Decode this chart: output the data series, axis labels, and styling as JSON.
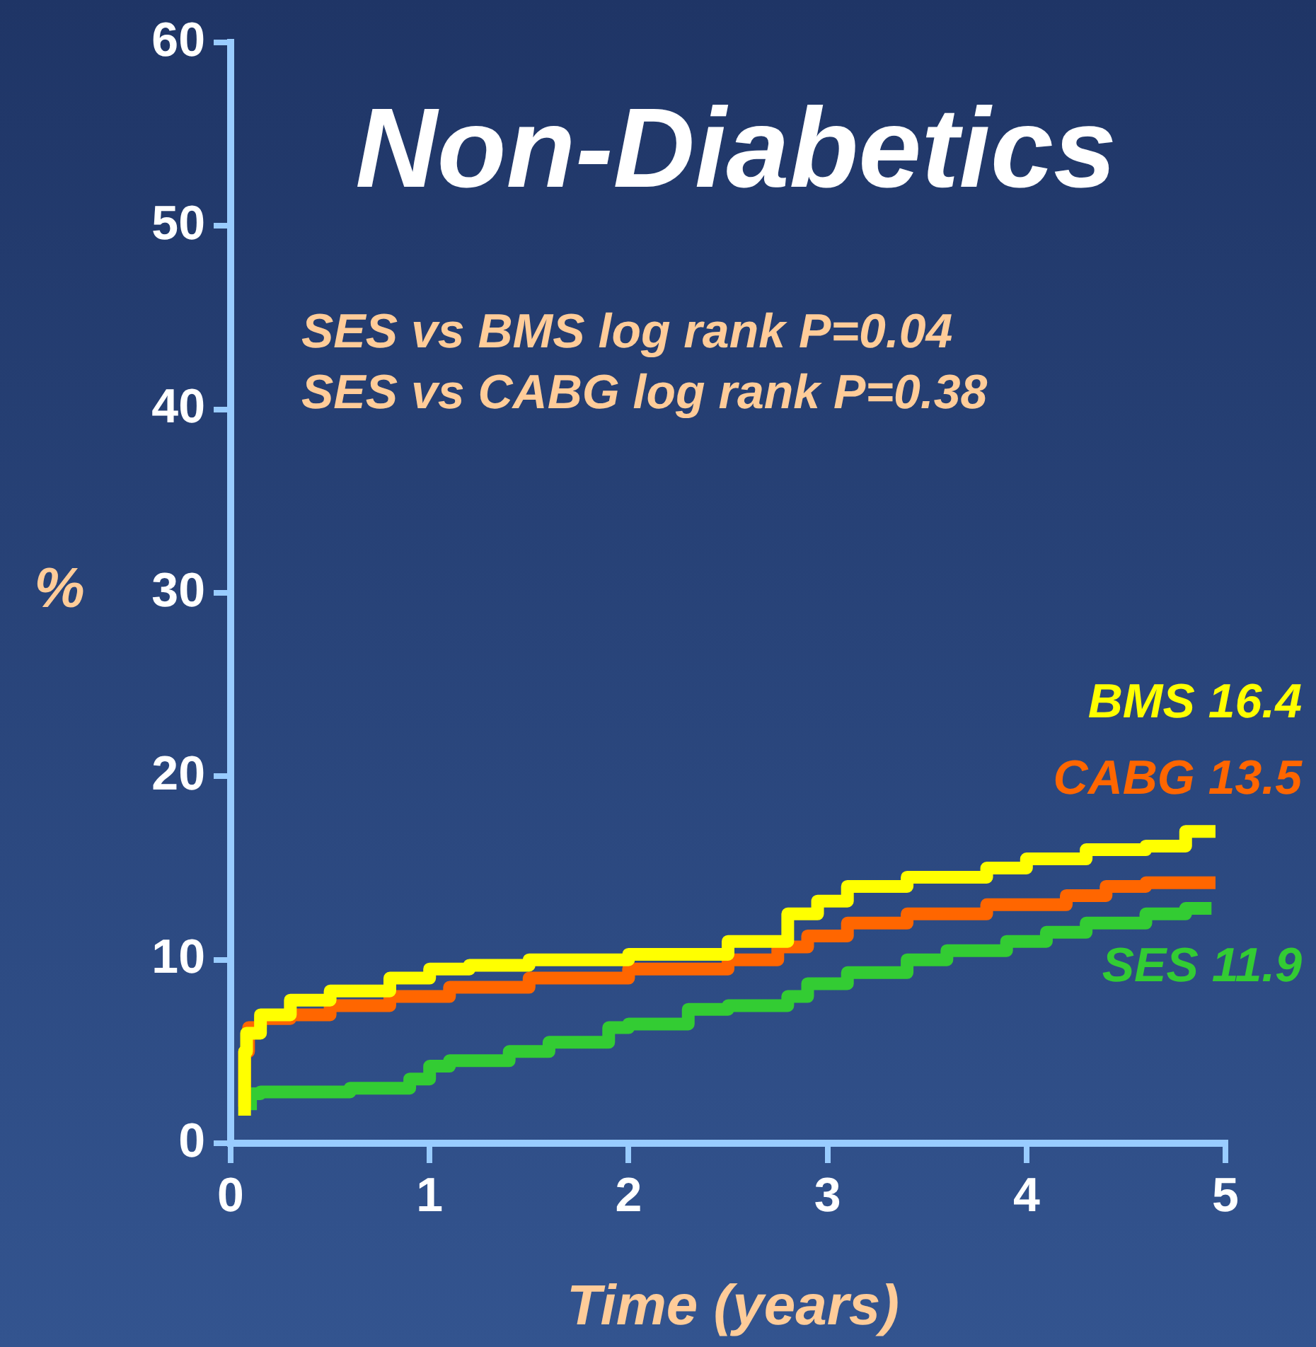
{
  "chart_data": {
    "type": "step",
    "title": "Non-Diabetics",
    "xlabel": "Time (years)",
    "ylabel": "%",
    "annotations": [
      "SES vs BMS log rank P=0.04",
      "SES vs CABG log rank P=0.38"
    ],
    "xlim": [
      0,
      5
    ],
    "xticks": [
      0,
      1,
      2,
      3,
      4,
      5
    ],
    "ylim": [
      0,
      60
    ],
    "yticks": [
      0,
      10,
      20,
      30,
      40,
      50,
      60
    ],
    "grid": false,
    "legend": false,
    "marker": "none",
    "line_style": "solid",
    "series": [
      {
        "name": "BMS 16.4",
        "color": "#ffff00",
        "x": [
          0.07,
          0.08,
          0.15,
          0.3,
          0.5,
          0.8,
          1.0,
          1.2,
          1.5,
          2.0,
          2.5,
          2.8,
          2.95,
          3.1,
          3.4,
          3.8,
          4.0,
          4.3,
          4.6,
          4.8,
          4.9,
          4.95
        ],
        "values": [
          1.5,
          5,
          6,
          7,
          7.8,
          8.3,
          9,
          9.5,
          9.7,
          10,
          10.3,
          11,
          12.5,
          13.2,
          14,
          14.5,
          15,
          15.5,
          16,
          16.2,
          17,
          17
        ]
      },
      {
        "name": "CABG 13.5",
        "color": "#ff6600",
        "x": [
          0.07,
          0.09,
          0.15,
          0.3,
          0.5,
          0.8,
          1.1,
          1.5,
          2.0,
          2.5,
          2.75,
          2.9,
          3.1,
          3.4,
          3.8,
          4.2,
          4.4,
          4.6,
          4.95
        ],
        "values": [
          2,
          5,
          6.3,
          6.8,
          7,
          7.5,
          8,
          8.5,
          9,
          9.5,
          10,
          10.7,
          11.3,
          12,
          12.5,
          13,
          13.5,
          14,
          14.2
        ]
      },
      {
        "name": "SES 11.9",
        "color": "#33cc33",
        "x": [
          0.1,
          0.15,
          0.6,
          0.9,
          1.0,
          1.1,
          1.4,
          1.6,
          1.9,
          2.0,
          2.3,
          2.5,
          2.8,
          2.9,
          3.1,
          3.4,
          3.6,
          3.9,
          4.1,
          4.3,
          4.6,
          4.8,
          4.9,
          4.93
        ],
        "values": [
          1.8,
          2.7,
          2.8,
          3.0,
          3.5,
          4.2,
          4.5,
          5,
          5.5,
          6.3,
          6.5,
          7.3,
          7.5,
          8,
          8.7,
          9.3,
          10,
          10.5,
          11,
          11.5,
          12,
          12.5,
          12.8,
          12.8
        ]
      }
    ]
  }
}
